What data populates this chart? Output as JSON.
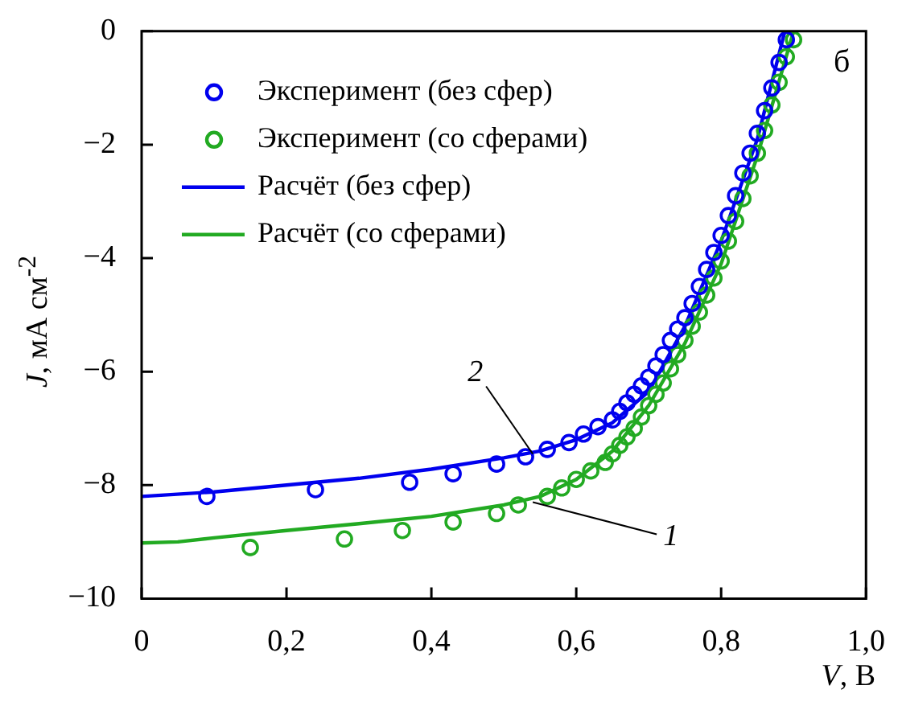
{
  "chart_data": {
    "type": "scatter",
    "xlabel": "V, В",
    "ylabel": "J, мА см$^{-2}$",
    "xlim": [
      0,
      1
    ],
    "ylim": [
      -10,
      0
    ],
    "xticks": [
      0,
      {
        "value": 0.2,
        "label": "0,2"
      },
      {
        "value": 0.4,
        "label": "0,4"
      },
      {
        "value": 0.6,
        "label": "0,6"
      },
      {
        "value": 0.8,
        "label": "0,8"
      },
      {
        "value": 1,
        "label": "1,0"
      }
    ],
    "yticks": [
      {
        "value": -10,
        "label": "−10"
      },
      {
        "value": -8,
        "label": "−8"
      },
      {
        "value": -6,
        "label": "−6"
      },
      {
        "value": -4,
        "label": "−4"
      },
      {
        "value": -2,
        "label": "−2"
      },
      0
    ],
    "grid": false,
    "legend": "top left",
    "annotations": [
      "б",
      {
        "text": "2",
        "x": 0.54,
        "y": -7.45
      },
      {
        "text": "1",
        "x": 0.54,
        "y": -8.3
      }
    ],
    "series": [
      {
        "name": "Эксперимент (без сфер)",
        "marker": "circle",
        "color": "#0000ee",
        "x": [
          0.09,
          0.24,
          0.37,
          0.43,
          0.49,
          0.53,
          0.56,
          0.59,
          0.61,
          0.63,
          0.65,
          0.66,
          0.67,
          0.68,
          0.69,
          0.7,
          0.71,
          0.72,
          0.73,
          0.74,
          0.75,
          0.76,
          0.77,
          0.78,
          0.79,
          0.8,
          0.81,
          0.82,
          0.83,
          0.84,
          0.85,
          0.86,
          0.87,
          0.88,
          0.89
        ],
        "values": [
          -8.2,
          -8.08,
          -7.95,
          -7.8,
          -7.63,
          -7.5,
          -7.37,
          -7.25,
          -7.1,
          -6.97,
          -6.85,
          -6.7,
          -6.55,
          -6.4,
          -6.25,
          -6.1,
          -5.9,
          -5.7,
          -5.45,
          -5.25,
          -5.05,
          -4.8,
          -4.5,
          -4.2,
          -3.9,
          -3.6,
          -3.25,
          -2.9,
          -2.5,
          -2.15,
          -1.8,
          -1.4,
          -1,
          -0.55,
          -0.15
        ]
      },
      {
        "name": "Эксперимент (со сферами)",
        "marker": "circle",
        "color": "#22aa22",
        "x": [
          0.15,
          0.28,
          0.36,
          0.43,
          0.49,
          0.52,
          0.56,
          0.58,
          0.6,
          0.62,
          0.64,
          0.65,
          0.66,
          0.67,
          0.68,
          0.69,
          0.7,
          0.71,
          0.72,
          0.73,
          0.74,
          0.75,
          0.76,
          0.77,
          0.78,
          0.79,
          0.8,
          0.81,
          0.82,
          0.83,
          0.84,
          0.85,
          0.86,
          0.87,
          0.88,
          0.89,
          0.9
        ],
        "values": [
          -9.1,
          -8.95,
          -8.8,
          -8.65,
          -8.5,
          -8.35,
          -8.2,
          -8.05,
          -7.9,
          -7.75,
          -7.6,
          -7.45,
          -7.3,
          -7.15,
          -7,
          -6.8,
          -6.6,
          -6.4,
          -6.2,
          -5.95,
          -5.7,
          -5.45,
          -5.2,
          -4.95,
          -4.65,
          -4.35,
          -4.05,
          -3.7,
          -3.35,
          -2.95,
          -2.55,
          -2.15,
          -1.75,
          -1.3,
          -0.9,
          -0.45,
          -0.15
        ]
      },
      {
        "name": "Расчёт (без сфер)",
        "type": "line",
        "marker": "none",
        "line_style": "solid",
        "color": "#0000ee",
        "x": [
          0,
          0.1,
          0.2,
          0.3,
          0.4,
          0.5,
          0.55,
          0.6,
          0.65,
          0.7,
          0.75,
          0.8,
          0.85,
          0.888
        ],
        "values": [
          -8.2,
          -8.12,
          -8,
          -7.88,
          -7.72,
          -7.52,
          -7.4,
          -7.2,
          -6.9,
          -6.35,
          -5.2,
          -3.7,
          -1.9,
          0
        ]
      },
      {
        "name": "Расчёт (со сферами)",
        "type": "line",
        "marker": "none",
        "line_style": "solid",
        "color": "#22aa22",
        "x": [
          0,
          0.05,
          0.1,
          0.2,
          0.3,
          0.4,
          0.5,
          0.55,
          0.6,
          0.65,
          0.7,
          0.75,
          0.8,
          0.85,
          0.9
        ],
        "values": [
          -9.02,
          -9,
          -8.93,
          -8.8,
          -8.68,
          -8.55,
          -8.35,
          -8.2,
          -7.9,
          -7.4,
          -6.6,
          -5.5,
          -4.1,
          -2.2,
          0
        ]
      }
    ]
  }
}
